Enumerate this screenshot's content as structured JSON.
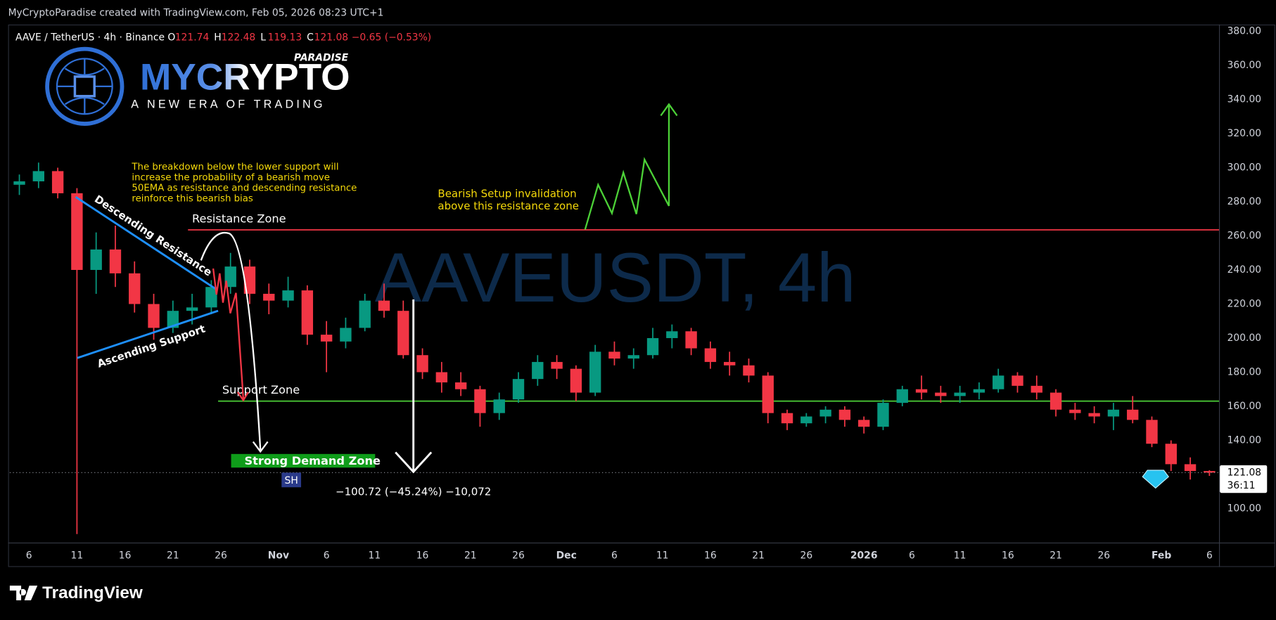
{
  "header": "MyCryptoParadise created with TradingView.com, Feb 05, 2026 08:23 UTC+1",
  "logo": {
    "name": "MYCRYPTO",
    "tag": "PARADISE",
    "slogan": "A NEW ERA OF TRADING"
  },
  "footer": "TradingView",
  "annotations": {
    "note": [
      "The breakdown below the lower support will",
      "increase the probability of a bearish move",
      "50EMA as resistance and descending resistance",
      "reinforce this bearish bias"
    ],
    "invalidation": [
      "Bearish Setup invalidation",
      "above this resistance zone"
    ],
    "descending": "Descending Resistance",
    "ascending": "Ascending Support",
    "swing_high": "SH"
  },
  "chart_data": {
    "type": "candlestick",
    "title": "AAVE / TetherUS · 4h · Binance",
    "watermark": "AAVEUSDT, 4h",
    "ohlc_legend": {
      "labels": [
        "O",
        "H",
        "L",
        "C"
      ],
      "values": [
        121.74,
        122.48,
        119.13,
        121.08
      ],
      "change": "−0.65 (−0.53%)"
    },
    "colors": {
      "up": "#089981",
      "down": "#f23645"
    },
    "x": [
      "Oct 4",
      "Oct 6",
      "Oct 8",
      "Oct 10",
      "Oct 12",
      "Oct 14",
      "Oct 16",
      "Oct 18",
      "Oct 20",
      "Oct 22",
      "Oct 24",
      "Oct 26",
      "Oct 28",
      "Oct 30",
      "Nov 1",
      "Nov 3",
      "Nov 5",
      "Nov 7",
      "Nov 9",
      "Nov 11",
      "Nov 13",
      "Nov 15",
      "Nov 17",
      "Nov 19",
      "Nov 21",
      "Nov 23",
      "Nov 25",
      "Nov 27",
      "Nov 29",
      "Dec 1",
      "Dec 3",
      "Dec 5",
      "Dec 7",
      "Dec 9",
      "Dec 11",
      "Dec 13",
      "Dec 15",
      "Dec 17",
      "Dec 19",
      "Dec 21",
      "Dec 23",
      "Dec 25",
      "Dec 27",
      "Dec 29",
      "Dec 31",
      "Jan 2",
      "Jan 4",
      "Jan 6",
      "Jan 8",
      "Jan 10",
      "Jan 12",
      "Jan 14",
      "Jan 16",
      "Jan 18",
      "Jan 20",
      "Jan 22",
      "Jan 24",
      "Jan 26",
      "Jan 28",
      "Jan 30",
      "Feb 1",
      "Feb 3",
      "Feb 5"
    ],
    "open": [
      290,
      292,
      298,
      285,
      240,
      252,
      238,
      220,
      206,
      216,
      218,
      230,
      242,
      226,
      222,
      228,
      202,
      198,
      206,
      222,
      216,
      190,
      180,
      174,
      170,
      156,
      164,
      176,
      186,
      182,
      168,
      192,
      188,
      190,
      200,
      204,
      194,
      186,
      184,
      178,
      156,
      150,
      154,
      158,
      152,
      148,
      162,
      170,
      168,
      166,
      168,
      170,
      178,
      172,
      168,
      158,
      156,
      154,
      158,
      152,
      138,
      126,
      122
    ],
    "high": [
      296,
      303,
      300,
      288,
      262,
      266,
      245,
      226,
      222,
      226,
      234,
      250,
      246,
      232,
      236,
      231,
      210,
      212,
      226,
      232,
      222,
      194,
      186,
      180,
      172,
      168,
      180,
      190,
      190,
      184,
      196,
      198,
      194,
      206,
      208,
      206,
      198,
      192,
      188,
      180,
      158,
      156,
      160,
      160,
      154,
      164,
      172,
      178,
      172,
      172,
      174,
      182,
      180,
      178,
      170,
      162,
      160,
      162,
      166,
      154,
      140,
      130,
      122.48
    ],
    "low": [
      284,
      288,
      282,
      85,
      226,
      230,
      215,
      199,
      203,
      208,
      214,
      226,
      220,
      214,
      218,
      196,
      180,
      194,
      204,
      212,
      188,
      176,
      168,
      166,
      148,
      152,
      162,
      172,
      176,
      163,
      166,
      184,
      182,
      188,
      194,
      190,
      182,
      178,
      174,
      150,
      146,
      148,
      150,
      148,
      144,
      146,
      160,
      164,
      162,
      162,
      164,
      168,
      168,
      164,
      154,
      152,
      150,
      146,
      150,
      136,
      122,
      117,
      119.13
    ],
    "close": [
      292,
      298,
      285,
      240,
      252,
      238,
      220,
      206,
      216,
      218,
      230,
      242,
      226,
      222,
      228,
      202,
      198,
      206,
      222,
      216,
      190,
      180,
      174,
      170,
      156,
      164,
      176,
      186,
      182,
      168,
      192,
      188,
      190,
      200,
      204,
      194,
      186,
      184,
      178,
      156,
      150,
      154,
      158,
      152,
      148,
      162,
      170,
      168,
      166,
      168,
      170,
      178,
      172,
      168,
      158,
      156,
      154,
      158,
      152,
      138,
      126,
      122,
      121.08
    ],
    "xlim": [
      "Oct 4",
      "Feb 7"
    ],
    "xticks": [
      {
        "value": "Oct 6",
        "label": "6"
      },
      {
        "value": "Oct 11",
        "label": "11"
      },
      {
        "value": "Oct 16",
        "label": "16"
      },
      {
        "value": "Oct 21",
        "label": "21"
      },
      {
        "value": "Oct 26",
        "label": "26"
      },
      {
        "value": "Nov 1",
        "label": "Nov"
      },
      {
        "value": "Nov 6",
        "label": "6"
      },
      {
        "value": "Nov 11",
        "label": "11"
      },
      {
        "value": "Nov 16",
        "label": "16"
      },
      {
        "value": "Nov 21",
        "label": "21"
      },
      {
        "value": "Nov 26",
        "label": "26"
      },
      {
        "value": "Dec 1",
        "label": "Dec"
      },
      {
        "value": "Dec 6",
        "label": "6"
      },
      {
        "value": "Dec 11",
        "label": "11"
      },
      {
        "value": "Dec 16",
        "label": "16"
      },
      {
        "value": "Dec 21",
        "label": "21"
      },
      {
        "value": "Dec 26",
        "label": "26"
      },
      {
        "value": "Jan 1",
        "label": "2026"
      },
      {
        "value": "Jan 6",
        "label": "6"
      },
      {
        "value": "Jan 11",
        "label": "11"
      },
      {
        "value": "Jan 16",
        "label": "16"
      },
      {
        "value": "Jan 21",
        "label": "21"
      },
      {
        "value": "Jan 26",
        "label": "26"
      },
      {
        "value": "Feb 1",
        "label": "Feb"
      },
      {
        "value": "Feb 6",
        "label": "6"
      }
    ],
    "ylim": [
      80,
      384
    ],
    "yticks": [
      {
        "value": 100,
        "label": "100.00"
      },
      {
        "value": 120,
        "label": "120.00"
      },
      {
        "value": 140,
        "label": "140.00"
      },
      {
        "value": 160,
        "label": "160.00"
      },
      {
        "value": 180,
        "label": "180.00"
      },
      {
        "value": 200,
        "label": "200.00"
      },
      {
        "value": 220,
        "label": "220.00"
      },
      {
        "value": 240,
        "label": "240.00"
      },
      {
        "value": 260,
        "label": "260.00"
      },
      {
        "value": 280,
        "label": "280.00"
      },
      {
        "value": 300,
        "label": "300.00"
      },
      {
        "value": 320,
        "label": "320.00"
      },
      {
        "value": 340,
        "label": "340.00"
      },
      {
        "value": 360,
        "label": "360.00"
      },
      {
        "value": 380,
        "label": "380.00"
      }
    ],
    "grid": false,
    "last_price": {
      "value": 121.08,
      "label": "121.08"
    },
    "countdown": "36:11",
    "levels": [
      {
        "name": "Resistance Zone",
        "value": 263.5,
        "color": "#f23645"
      },
      {
        "name": "Support Zone",
        "value": 163,
        "color": "#4cd137"
      }
    ],
    "demand_zone": {
      "name": "Strong Demand Zone",
      "low": 124,
      "high": 132
    },
    "measure": "−100.72 (−45.24%) −10,072"
  }
}
